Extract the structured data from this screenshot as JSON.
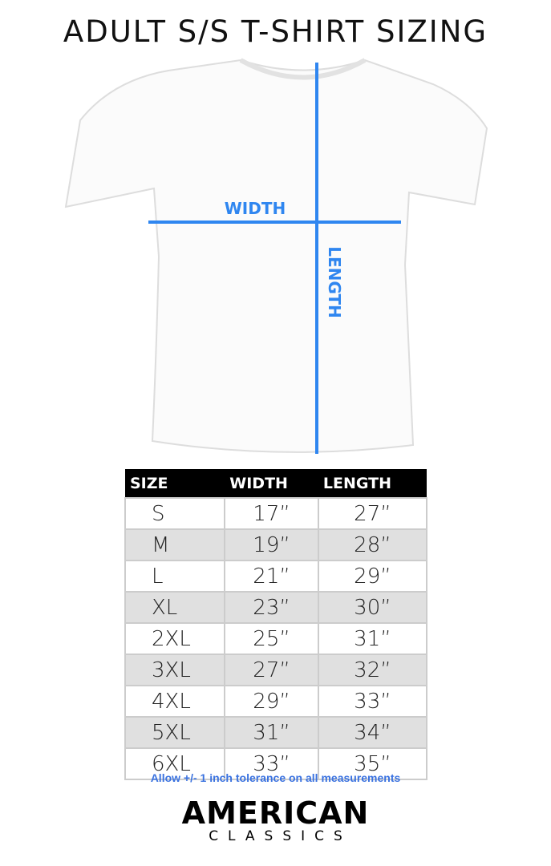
{
  "title": "ADULT S/S T-SHIRT SIZING",
  "diagram": {
    "width_label": "WIDTH",
    "length_label": "LENGTH",
    "line_color": "#2f86f0"
  },
  "table": {
    "headers": [
      "SIZE",
      "WIDTH",
      "LENGTH"
    ],
    "rows": [
      [
        "S",
        "17”",
        "27”"
      ],
      [
        "M",
        "19”",
        "28”"
      ],
      [
        "L",
        "21”",
        "29”"
      ],
      [
        "XL",
        "23”",
        "30”"
      ],
      [
        "2XL",
        "25”",
        "31”"
      ],
      [
        "3XL",
        "27”",
        "32”"
      ],
      [
        "4XL",
        "29”",
        "33”"
      ],
      [
        "5XL",
        "31”",
        "34”"
      ],
      [
        "6XL",
        "33”",
        "35”"
      ]
    ]
  },
  "note": "Allow +/- 1 inch tolerance on all measurements",
  "logo": {
    "line1": "AMERICAN",
    "line2": "CLASSICS"
  }
}
